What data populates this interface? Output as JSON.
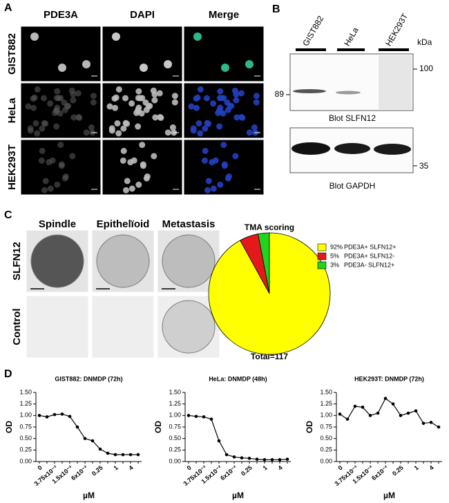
{
  "panel_labels": [
    "A",
    "B",
    "C",
    "D"
  ],
  "panel_a": {
    "columns": [
      "PDE3A",
      "DAPI",
      "Merge"
    ],
    "rows": [
      "GIST882",
      "HeLa",
      "HEK293T"
    ]
  },
  "panel_b": {
    "lanes": [
      "GIST882",
      "HeLa",
      "HEK293T"
    ],
    "unit": "kDa",
    "markers": [
      "100",
      "89",
      "35"
    ],
    "blots": [
      "Blot SLFN12",
      "Blot GAPDH"
    ]
  },
  "panel_c": {
    "columns": [
      "Spindle",
      "Epithelïoid",
      "Metastasis"
    ],
    "rows": [
      "SLFN12",
      "Control"
    ]
  },
  "chart_data": [
    {
      "type": "pie",
      "title": "TMA scoring",
      "footer": "Total=117",
      "categories": [
        "PDE3A+ SLFN12+",
        "PDE3A+ SLFN12-",
        "PDE3A- SLFN12+"
      ],
      "values": [
        92,
        5,
        3
      ],
      "value_labels": [
        "92%",
        "5%",
        "3%"
      ],
      "colors": [
        "#ffff00",
        "#e31a1c",
        "#1fd31f"
      ]
    },
    {
      "type": "line",
      "title": "GIST882: DNMDP (72h)",
      "y_label": "OD",
      "x_label": "µM",
      "color": "#000000",
      "categories": [
        "0",
        null,
        "3.75x10⁻³",
        null,
        "1.5x10⁻²",
        null,
        "6x10⁻²",
        null,
        "0.25",
        null,
        "1",
        null,
        "4",
        null
      ],
      "values": [
        1.0,
        0.97,
        1.02,
        1.03,
        0.98,
        0.75,
        0.5,
        0.45,
        0.27,
        0.18,
        0.15,
        0.15,
        0.15,
        0.15
      ],
      "ylim": [
        0,
        1.5
      ],
      "yticks": [
        {
          "value": 0,
          "label": "0.00"
        },
        {
          "value": 0.25,
          "label": "0.25"
        },
        {
          "value": 0.5,
          "label": "0.50"
        },
        {
          "value": 0.75,
          "label": "0.75"
        },
        {
          "value": 1,
          "label": "1.00"
        },
        {
          "value": 1.25,
          "label": "1.25"
        },
        {
          "value": 1.5,
          "label": "1.50"
        }
      ]
    },
    {
      "type": "line",
      "title": "HeLa: DNMDP (48h)",
      "y_label": "OD",
      "x_label": "µM",
      "color": "#000000",
      "categories": [
        "0",
        null,
        "3.75x10⁻³",
        null,
        "1.5x10⁻²",
        null,
        "6x10⁻²",
        null,
        "0.25",
        null,
        "1",
        null,
        "4",
        null
      ],
      "values": [
        1.0,
        0.98,
        0.97,
        0.92,
        0.45,
        0.15,
        0.1,
        0.08,
        0.07,
        0.05,
        0.04,
        0.04,
        0.04,
        0.05
      ],
      "ylim": [
        0,
        1.5
      ],
      "yticks": [
        {
          "value": 0,
          "label": "0.00"
        },
        {
          "value": 0.25,
          "label": "0.25"
        },
        {
          "value": 0.5,
          "label": "0.50"
        },
        {
          "value": 0.75,
          "label": "0.75"
        },
        {
          "value": 1,
          "label": "1.00"
        },
        {
          "value": 1.25,
          "label": "1.25"
        },
        {
          "value": 1.5,
          "label": "1.50"
        }
      ]
    },
    {
      "type": "line",
      "title": "HEK293T: DNMDP (72h)",
      "y_label": "OD",
      "x_label": "µM",
      "color": "#000000",
      "categories": [
        "0",
        null,
        "3.75x10⁻³",
        null,
        "1.5x10⁻²",
        null,
        "6x10⁻²",
        null,
        "0.25",
        null,
        "1",
        null,
        "4",
        null
      ],
      "values": [
        1.03,
        0.92,
        1.2,
        1.18,
        1.0,
        1.05,
        1.37,
        1.25,
        1.0,
        1.05,
        1.1,
        0.83,
        0.85,
        0.75
      ],
      "ylim": [
        0,
        1.5
      ],
      "yticks": [
        {
          "value": 0,
          "label": "0.00"
        },
        {
          "value": 0.25,
          "label": "0.25"
        },
        {
          "value": 0.5,
          "label": "0.50"
        },
        {
          "value": 0.75,
          "label": "0.75"
        },
        {
          "value": 1,
          "label": "1.00"
        },
        {
          "value": 1.25,
          "label": "1.25"
        },
        {
          "value": 1.5,
          "label": "1.50"
        }
      ]
    }
  ]
}
